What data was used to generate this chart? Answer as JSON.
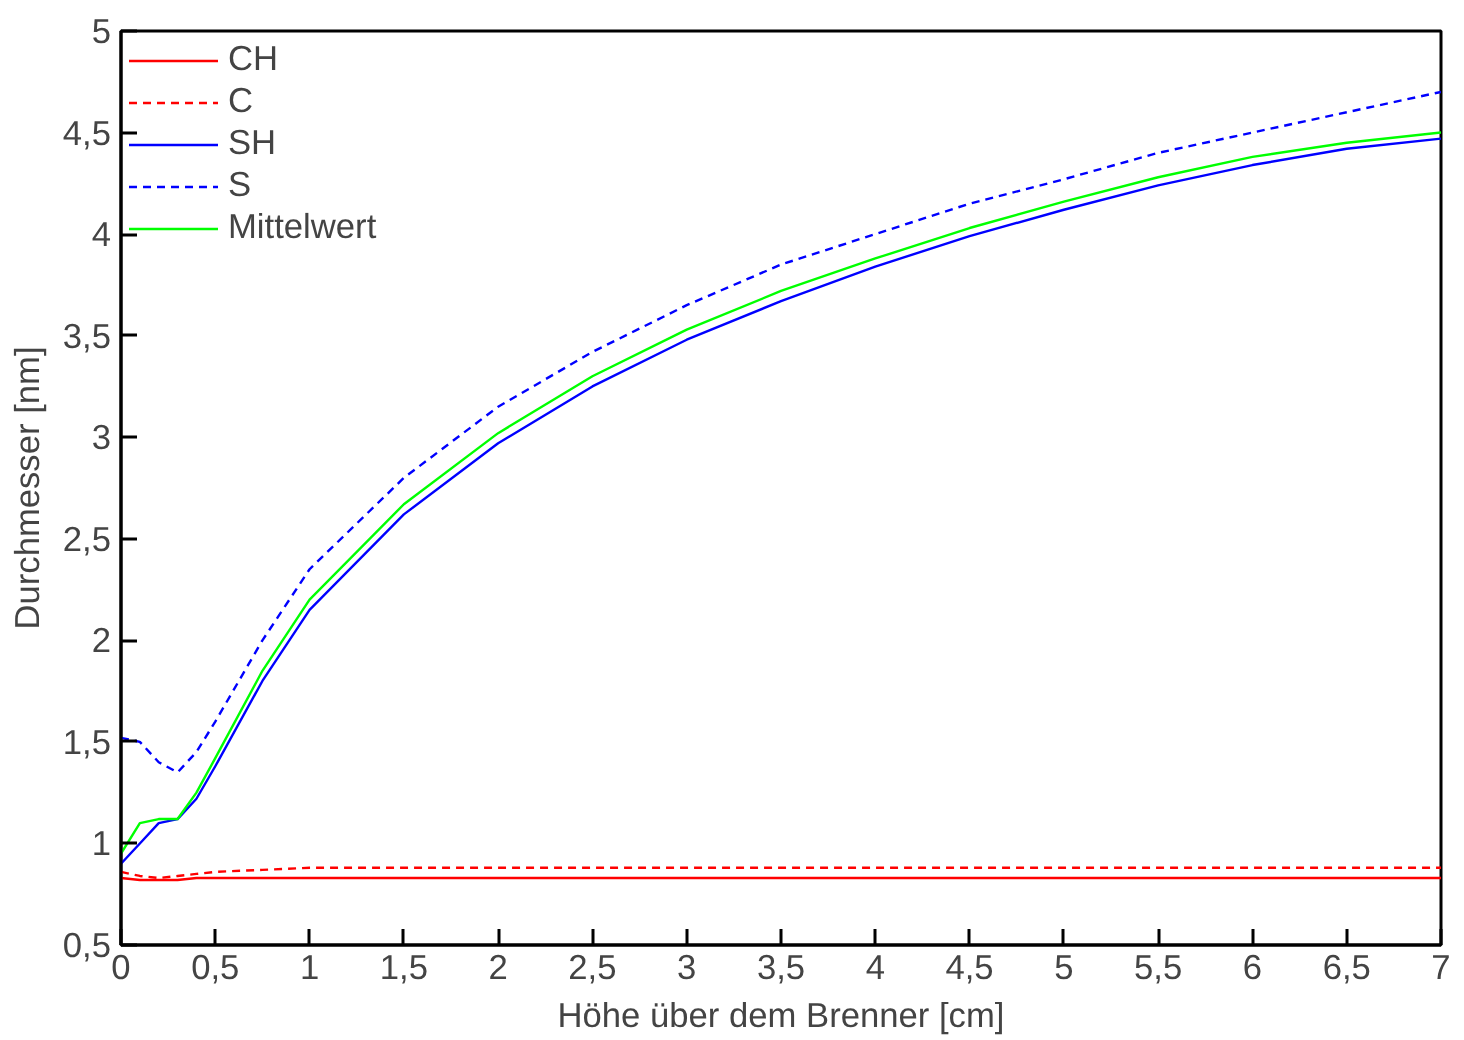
{
  "chart_data": {
    "type": "line",
    "xlabel": "Höhe über dem Brenner [cm]",
    "ylabel": "Durchmesser [nm]",
    "xlim": [
      0,
      7
    ],
    "ylim": [
      0.5,
      5
    ],
    "grid": false,
    "legend": "top left",
    "xticks": [
      0,
      {
        "value": 0.5,
        "label": "0,5"
      },
      1,
      {
        "value": 1.5,
        "label": "1,5"
      },
      2,
      {
        "value": 2.5,
        "label": "2,5"
      },
      3,
      {
        "value": 3.5,
        "label": "3,5"
      },
      4,
      {
        "value": 4.5,
        "label": "4,5"
      },
      5,
      {
        "value": 5.5,
        "label": "5,5"
      },
      6,
      {
        "value": 6.5,
        "label": "6,5"
      },
      7
    ],
    "yticks": [
      {
        "value": 0.5,
        "label": "0,5"
      },
      1,
      {
        "value": 1.5,
        "label": "1,5"
      },
      2,
      {
        "value": 2.5,
        "label": "2,5"
      },
      3,
      {
        "value": 3.5,
        "label": "3,5"
      },
      4,
      {
        "value": 4.5,
        "label": "4,5"
      },
      5
    ],
    "x": [
      0,
      0.1,
      0.2,
      0.3,
      0.4,
      0.5,
      0.75,
      1,
      1.5,
      2,
      2.5,
      3,
      3.5,
      4,
      4.5,
      5,
      5.5,
      6,
      6.5,
      7
    ],
    "series": [
      {
        "name": "CH",
        "color": "#ff0000",
        "line_style": "solid",
        "values": [
          0.83,
          0.82,
          0.82,
          0.82,
          0.83,
          0.83,
          0.83,
          0.83,
          0.83,
          0.83,
          0.83,
          0.83,
          0.83,
          0.83,
          0.83,
          0.83,
          0.83,
          0.83,
          0.83,
          0.83
        ]
      },
      {
        "name": "C",
        "color": "#ff0000",
        "line_style": "dashed",
        "values": [
          0.86,
          0.84,
          0.83,
          0.84,
          0.85,
          0.86,
          0.87,
          0.88,
          0.88,
          0.88,
          0.88,
          0.88,
          0.88,
          0.88,
          0.88,
          0.88,
          0.88,
          0.88,
          0.88,
          0.88
        ]
      },
      {
        "name": "SH",
        "color": "#0000ff",
        "line_style": "solid",
        "values": [
          0.9,
          1.0,
          1.1,
          1.12,
          1.22,
          1.38,
          1.8,
          2.15,
          2.62,
          2.97,
          3.25,
          3.48,
          3.67,
          3.84,
          3.99,
          4.12,
          4.24,
          4.34,
          4.42,
          4.47
        ]
      },
      {
        "name": "S",
        "color": "#0000ff",
        "line_style": "dashed",
        "values": [
          1.52,
          1.5,
          1.4,
          1.35,
          1.45,
          1.6,
          2.0,
          2.35,
          2.8,
          3.15,
          3.42,
          3.65,
          3.85,
          4.0,
          4.15,
          4.27,
          4.4,
          4.5,
          4.6,
          4.7
        ]
      },
      {
        "name": "Mittelwert",
        "color": "#00ff00",
        "line_style": "solid",
        "values": [
          0.95,
          1.1,
          1.12,
          1.12,
          1.25,
          1.42,
          1.85,
          2.2,
          2.67,
          3.02,
          3.3,
          3.53,
          3.72,
          3.88,
          4.03,
          4.16,
          4.28,
          4.38,
          4.45,
          4.5
        ]
      }
    ]
  }
}
